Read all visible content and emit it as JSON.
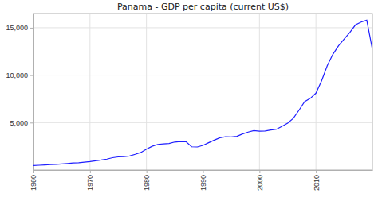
{
  "chart_data": {
    "type": "line",
    "title": "Panama - GDP per capita (current US$)",
    "x": [
      1960,
      1961,
      1962,
      1963,
      1964,
      1965,
      1966,
      1967,
      1968,
      1969,
      1970,
      1971,
      1972,
      1973,
      1974,
      1975,
      1976,
      1977,
      1978,
      1979,
      1980,
      1981,
      1982,
      1983,
      1984,
      1985,
      1986,
      1987,
      1988,
      1989,
      1990,
      1991,
      1992,
      1993,
      1994,
      1995,
      1996,
      1997,
      1998,
      1999,
      2000,
      2001,
      2002,
      2003,
      2004,
      2005,
      2006,
      2007,
      2008,
      2009,
      2010,
      2011,
      2012,
      2013,
      2014,
      2015,
      2016,
      2017,
      2018,
      2019,
      2020
    ],
    "values": [
      463,
      503,
      532,
      572,
      600,
      645,
      688,
      738,
      772,
      830,
      890,
      966,
      1050,
      1150,
      1300,
      1380,
      1420,
      1480,
      1650,
      1850,
      2200,
      2500,
      2700,
      2750,
      2800,
      2950,
      3000,
      2980,
      2450,
      2430,
      2600,
      2880,
      3150,
      3400,
      3500,
      3480,
      3550,
      3800,
      4000,
      4150,
      4100,
      4120,
      4220,
      4300,
      4600,
      4950,
      5450,
      6300,
      7200,
      7550,
      8100,
      9400,
      11000,
      12200,
      13100,
      13800,
      14500,
      15300,
      15600,
      15800,
      12700
    ],
    "color": "#1f1fff",
    "xlim": [
      1960,
      2020
    ],
    "ylim": [
      0,
      16500
    ],
    "xticks": [
      1960,
      1970,
      1980,
      1990,
      2000,
      2010
    ],
    "yticks": [
      {
        "value": 5000,
        "label": "5,000"
      },
      {
        "value": 10000,
        "label": "10,000"
      },
      {
        "value": 15000,
        "label": "15,000"
      }
    ],
    "grid": true
  }
}
